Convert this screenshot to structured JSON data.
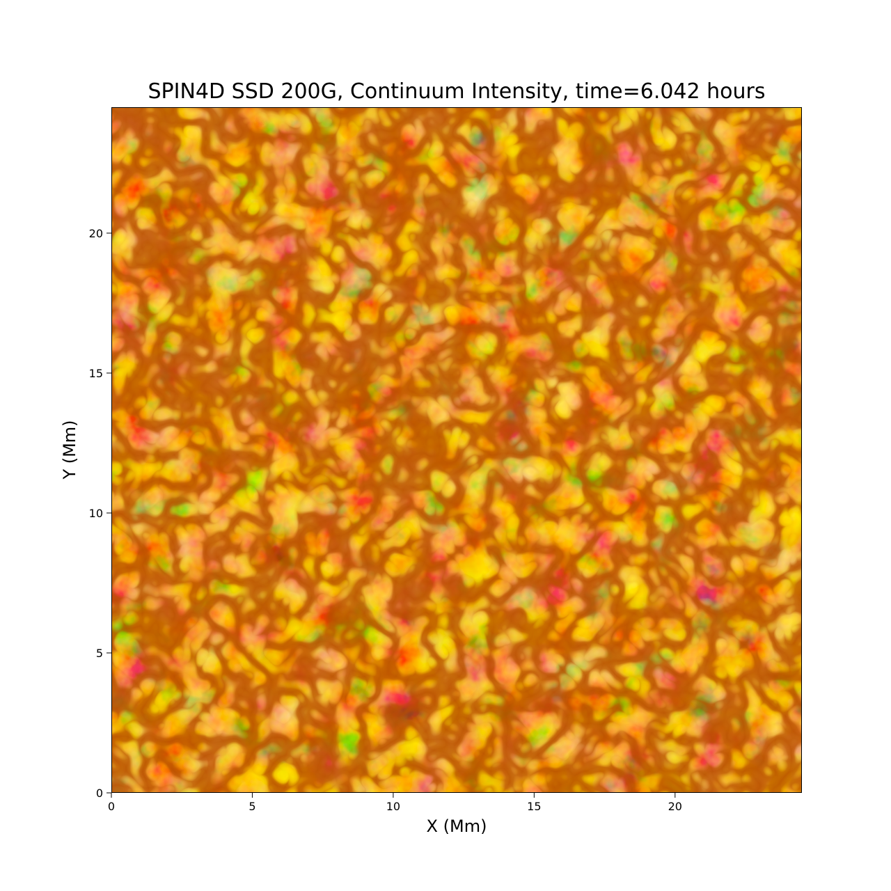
{
  "chart_data": {
    "type": "heatmap",
    "title": "SPIN4D SSD 200G, Continuum Intensity, time=6.042 hours",
    "xlabel": "X (Mm)",
    "ylabel": "Y (Mm)",
    "xlim": [
      0,
      24.5
    ],
    "ylim": [
      0,
      24.5
    ],
    "xticks": [
      0,
      5,
      10,
      15,
      20
    ],
    "yticks": [
      0,
      5,
      10,
      15,
      20
    ],
    "colormap": "afmhot",
    "colors": {
      "lane_dark": "#7a1500",
      "mid": "#c84a00",
      "bright": "#f8a020",
      "brightest": "#fff27a"
    }
  }
}
